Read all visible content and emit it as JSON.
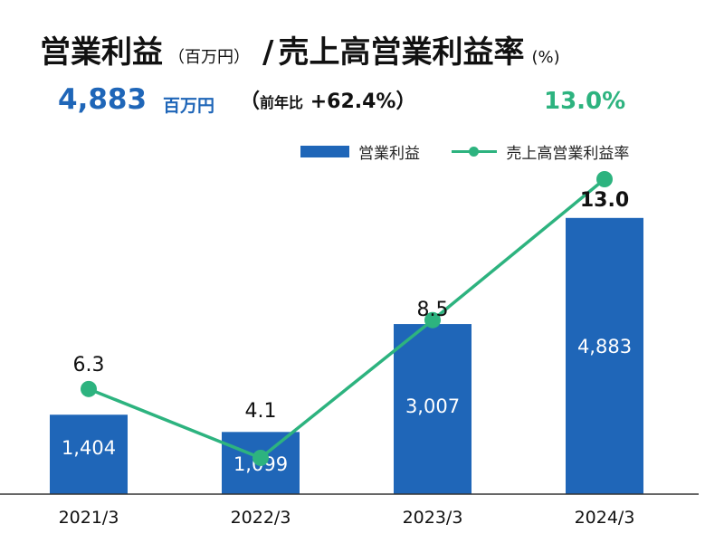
{
  "header": {
    "title_main": "営業利益",
    "title_main_unit": "（百万円）",
    "title_sep": "/",
    "title_second": "売上高営業利益率",
    "title_second_unit": "(%)"
  },
  "kpi": {
    "value": "4,883",
    "unit": "百万円",
    "yoy_open": "（",
    "yoy_label": "前年比",
    "yoy_value": "+62.4%",
    "yoy_close": "）",
    "rate": "13.0%"
  },
  "colors": {
    "bar": "#1f66b8",
    "line": "#2db37f",
    "axis": "#333333"
  },
  "chart_data": {
    "type": "bar",
    "categories": [
      "2021/3",
      "2022/3",
      "2023/3",
      "2024/3"
    ],
    "series": [
      {
        "name": "営業利益",
        "kind": "bar",
        "values": [
          1404,
          1099,
          3007,
          4883
        ],
        "labels": [
          "1,404",
          "1,099",
          "3,007",
          "4,883"
        ]
      },
      {
        "name": "売上高営業利益率",
        "kind": "line",
        "values": [
          6.3,
          4.1,
          8.5,
          13.0
        ],
        "labels": [
          "6.3",
          "4.1",
          "8.5",
          "13.0"
        ]
      }
    ],
    "legend": "top-right",
    "grid": false
  }
}
